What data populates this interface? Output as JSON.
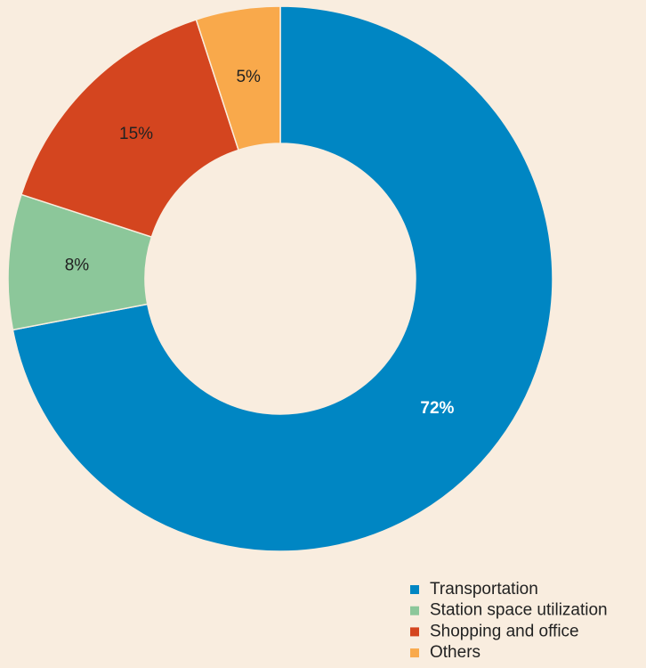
{
  "chart_data": {
    "type": "donut",
    "categories": [
      "Transportation",
      "Station space utilization",
      "Shopping and office",
      "Others"
    ],
    "values": [
      72,
      8,
      15,
      5
    ],
    "value_labels": [
      "72%",
      "8%",
      "15%",
      "5%"
    ],
    "colors": [
      "#0086c3",
      "#8cc79a",
      "#d4451f",
      "#f9a94b"
    ],
    "value_label_colors": [
      "#ffffff",
      "#222222",
      "#222222",
      "#222222"
    ],
    "legend": "bottom-right"
  }
}
